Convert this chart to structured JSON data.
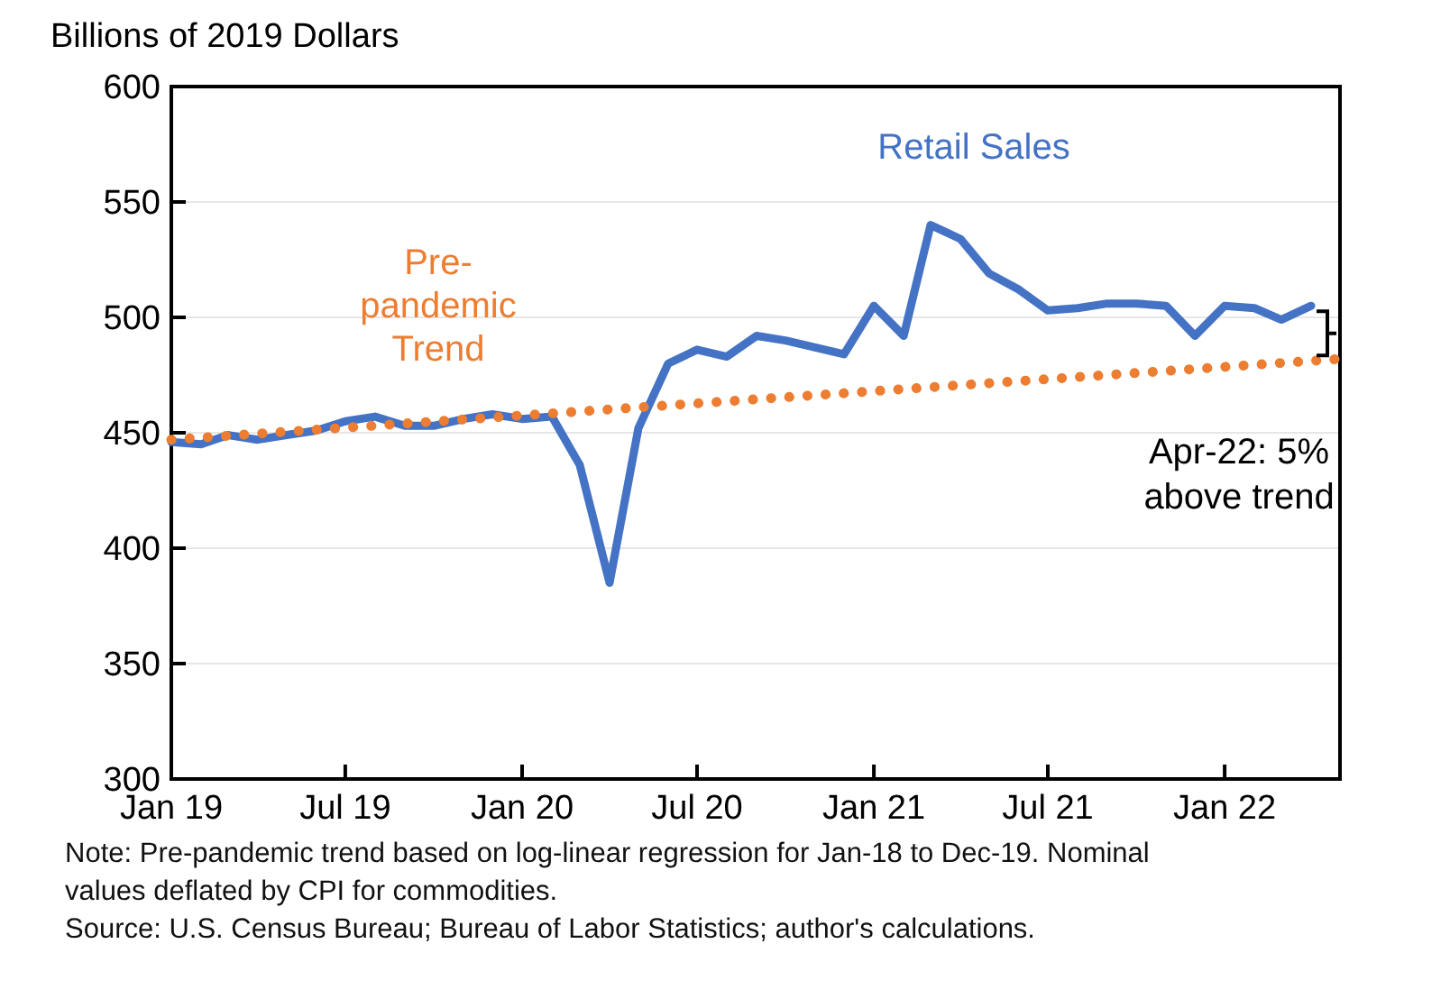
{
  "chart_data": {
    "type": "line",
    "ylabel": "Billions of 2019 Dollars",
    "xlim": [
      "2019-01",
      "2022-05"
    ],
    "xticks": [
      {
        "value": "2019-01",
        "label": "Jan 19"
      },
      {
        "value": "2019-07",
        "label": "Jul 19"
      },
      {
        "value": "2020-01",
        "label": "Jan 20"
      },
      {
        "value": "2020-07",
        "label": "Jul 20"
      },
      {
        "value": "2021-01",
        "label": "Jan 21"
      },
      {
        "value": "2021-07",
        "label": "Jul 21"
      },
      {
        "value": "2022-01",
        "label": "Jan 22"
      }
    ],
    "ylim": [
      300,
      600
    ],
    "yticks": [
      300,
      350,
      400,
      450,
      500,
      550,
      600
    ],
    "grid": "y",
    "legend": false,
    "marker": "none",
    "x": [
      "2019-01",
      "2019-02",
      "2019-03",
      "2019-04",
      "2019-05",
      "2019-06",
      "2019-07",
      "2019-08",
      "2019-09",
      "2019-10",
      "2019-11",
      "2019-12",
      "2020-01",
      "2020-02",
      "2020-03",
      "2020-04",
      "2020-05",
      "2020-06",
      "2020-07",
      "2020-08",
      "2020-09",
      "2020-10",
      "2020-11",
      "2020-12",
      "2021-01",
      "2021-02",
      "2021-03",
      "2021-04",
      "2021-05",
      "2021-06",
      "2021-07",
      "2021-08",
      "2021-09",
      "2021-10",
      "2021-11",
      "2021-12",
      "2022-01",
      "2022-02",
      "2022-03",
      "2022-04"
    ],
    "series": [
      {
        "name": "Retail Sales",
        "color": "#4472c4",
        "line_style": "solid",
        "values": [
          446,
          445,
          449,
          447,
          449,
          451,
          455,
          457,
          453,
          453,
          456,
          458,
          456,
          457,
          436,
          385,
          452,
          480,
          486,
          483,
          492,
          490,
          487,
          484,
          505,
          492,
          540,
          534,
          519,
          512,
          503,
          504,
          506,
          506,
          505,
          492,
          505,
          504,
          499,
          505
        ]
      },
      {
        "name": "Pre-pandemic Trend",
        "color": "#ed7d31",
        "line_style": "dotted",
        "x": [
          "2019-01",
          "2022-05"
        ],
        "values": [
          447,
          482
        ]
      }
    ],
    "annotations": [
      "Apr-22: 5% above trend",
      "Note: Pre-pandemic trend based on log-linear regression for Jan-18 to Dec-19. Nominal values deflated by CPI for commodities.",
      "Source: U.S. Census Bureau; Bureau of Labor Statistics; author's calculations."
    ]
  }
}
